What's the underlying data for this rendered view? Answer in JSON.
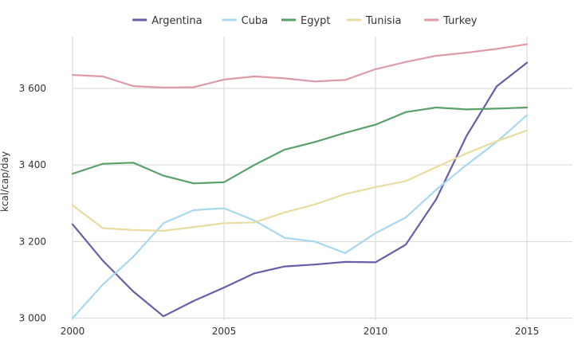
{
  "chart_data": {
    "type": "line",
    "title": "",
    "xlabel": "",
    "ylabel": "kcal/cap/day",
    "x": [
      2000,
      2001,
      2002,
      2003,
      2004,
      2005,
      2006,
      2007,
      2008,
      2009,
      2010,
      2011,
      2012,
      2013,
      2014,
      2015
    ],
    "xlim": [
      2000,
      2016.5
    ],
    "ylim": [
      2995,
      3735
    ],
    "x_ticks": [
      2000,
      2005,
      2010,
      2015
    ],
    "x_tick_labels": [
      "2000",
      "2005",
      "2010",
      "2015"
    ],
    "y_ticks": [
      3000,
      3200,
      3400,
      3600
    ],
    "y_tick_labels": [
      "3 000",
      "3 200",
      "3 400",
      "3 600"
    ],
    "grid": true,
    "legend_position": "top",
    "series": [
      {
        "name": "Argentina",
        "color": "#6a5da8",
        "values": [
          3245,
          3150,
          3070,
          3005,
          3045,
          3080,
          3117,
          3135,
          3140,
          3147,
          3146,
          3192,
          3310,
          3475,
          3605,
          3667
        ]
      },
      {
        "name": "Cuba",
        "color": "#a6d8ef",
        "values": [
          3000,
          3088,
          3160,
          3248,
          3282,
          3287,
          3255,
          3210,
          3200,
          3170,
          3222,
          3263,
          3335,
          3400,
          3460,
          3530
        ]
      },
      {
        "name": "Egypt",
        "color": "#5aa06a",
        "values": [
          3377,
          3403,
          3406,
          3372,
          3352,
          3355,
          3400,
          3440,
          3460,
          3484,
          3505,
          3538,
          3550,
          3545,
          3547,
          3550
        ]
      },
      {
        "name": "Tunisia",
        "color": "#e8dca0",
        "values": [
          3295,
          3235,
          3230,
          3228,
          3238,
          3248,
          3250,
          3276,
          3297,
          3324,
          3342,
          3358,
          3394,
          3430,
          3462,
          3490
        ]
      },
      {
        "name": "Turkey",
        "color": "#de9aa6",
        "values": [
          3635,
          3631,
          3606,
          3602,
          3603,
          3623,
          3631,
          3626,
          3618,
          3622,
          3650,
          3669,
          3685,
          3693,
          3703,
          3715
        ]
      }
    ]
  }
}
